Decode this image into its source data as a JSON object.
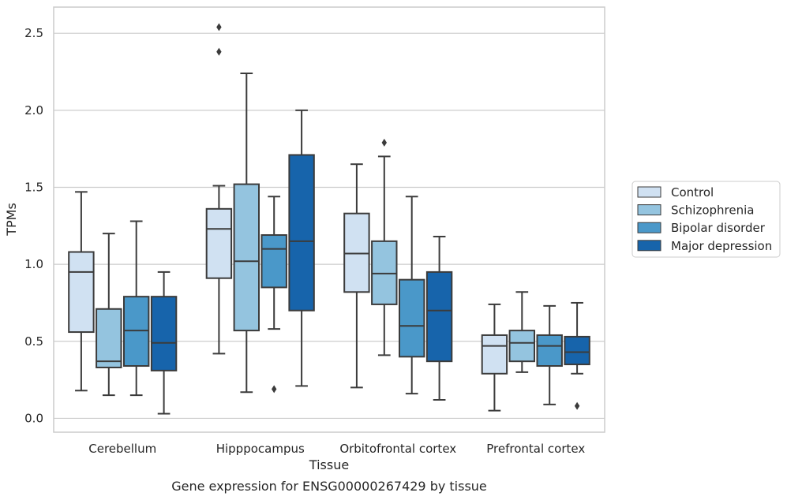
{
  "chart_data": {
    "type": "box",
    "title": "",
    "caption": "Gene expression for ENSG00000267429 by tissue",
    "xlabel": "Tissue",
    "ylabel": "TPMs",
    "ylim": [
      -0.09,
      2.67
    ],
    "yticks": [
      "0.0",
      "0.5",
      "1.0",
      "1.5",
      "2.0",
      "2.5"
    ],
    "ytick_values": [
      0.0,
      0.5,
      1.0,
      1.5,
      2.0,
      2.5
    ],
    "grid": true,
    "legend_position": "right",
    "categories": [
      "Cerebellum",
      "Hipppocampus",
      "Orbitofrontal cortex",
      "Prefrontal cortex"
    ],
    "series": [
      {
        "name": "Control",
        "color": "#d0e1f2",
        "boxes": [
          {
            "whislo": 0.18,
            "q1": 0.56,
            "med": 0.95,
            "q3": 1.08,
            "whishi": 1.47,
            "fliers": []
          },
          {
            "whislo": 0.42,
            "q1": 0.91,
            "med": 1.23,
            "q3": 1.36,
            "whishi": 1.51,
            "fliers": [
              2.38,
              2.54
            ]
          },
          {
            "whislo": 0.2,
            "q1": 0.82,
            "med": 1.07,
            "q3": 1.33,
            "whishi": 1.65,
            "fliers": []
          },
          {
            "whislo": 0.05,
            "q1": 0.29,
            "med": 0.47,
            "q3": 0.54,
            "whishi": 0.74,
            "fliers": []
          }
        ]
      },
      {
        "name": "Schizophrenia",
        "color": "#94c4df",
        "boxes": [
          {
            "whislo": 0.15,
            "q1": 0.33,
            "med": 0.37,
            "q3": 0.71,
            "whishi": 1.2,
            "fliers": []
          },
          {
            "whislo": 0.17,
            "q1": 0.57,
            "med": 1.02,
            "q3": 1.52,
            "whishi": 2.24,
            "fliers": []
          },
          {
            "whislo": 0.41,
            "q1": 0.74,
            "med": 0.94,
            "q3": 1.15,
            "whishi": 1.7,
            "fliers": [
              1.79
            ]
          },
          {
            "whislo": 0.3,
            "q1": 0.37,
            "med": 0.49,
            "q3": 0.57,
            "whishi": 0.82,
            "fliers": []
          }
        ]
      },
      {
        "name": "Bipolar disorder",
        "color": "#4a98c9",
        "boxes": [
          {
            "whislo": 0.15,
            "q1": 0.34,
            "med": 0.57,
            "q3": 0.79,
            "whishi": 1.28,
            "fliers": []
          },
          {
            "whislo": 0.58,
            "q1": 0.85,
            "med": 1.1,
            "q3": 1.19,
            "whishi": 1.44,
            "fliers": [
              0.19
            ]
          },
          {
            "whislo": 0.16,
            "q1": 0.4,
            "med": 0.6,
            "q3": 0.9,
            "whishi": 1.44,
            "fliers": []
          },
          {
            "whislo": 0.09,
            "q1": 0.34,
            "med": 0.47,
            "q3": 0.54,
            "whishi": 0.73,
            "fliers": []
          }
        ]
      },
      {
        "name": "Major depression",
        "color": "#1764ab",
        "boxes": [
          {
            "whislo": 0.03,
            "q1": 0.31,
            "med": 0.49,
            "q3": 0.79,
            "whishi": 0.95,
            "fliers": []
          },
          {
            "whislo": 0.21,
            "q1": 0.7,
            "med": 1.15,
            "q3": 1.71,
            "whishi": 2.0,
            "fliers": []
          },
          {
            "whislo": 0.12,
            "q1": 0.37,
            "med": 0.7,
            "q3": 0.95,
            "whishi": 1.18,
            "fliers": []
          },
          {
            "whislo": 0.29,
            "q1": 0.35,
            "med": 0.43,
            "q3": 0.53,
            "whishi": 0.75,
            "fliers": [
              0.08
            ]
          }
        ]
      }
    ],
    "colors": {
      "grid": "#cccccc",
      "frame": "#cccccc",
      "box_edge": "#3b3b3b",
      "legend_edge": "#cccccc"
    }
  }
}
